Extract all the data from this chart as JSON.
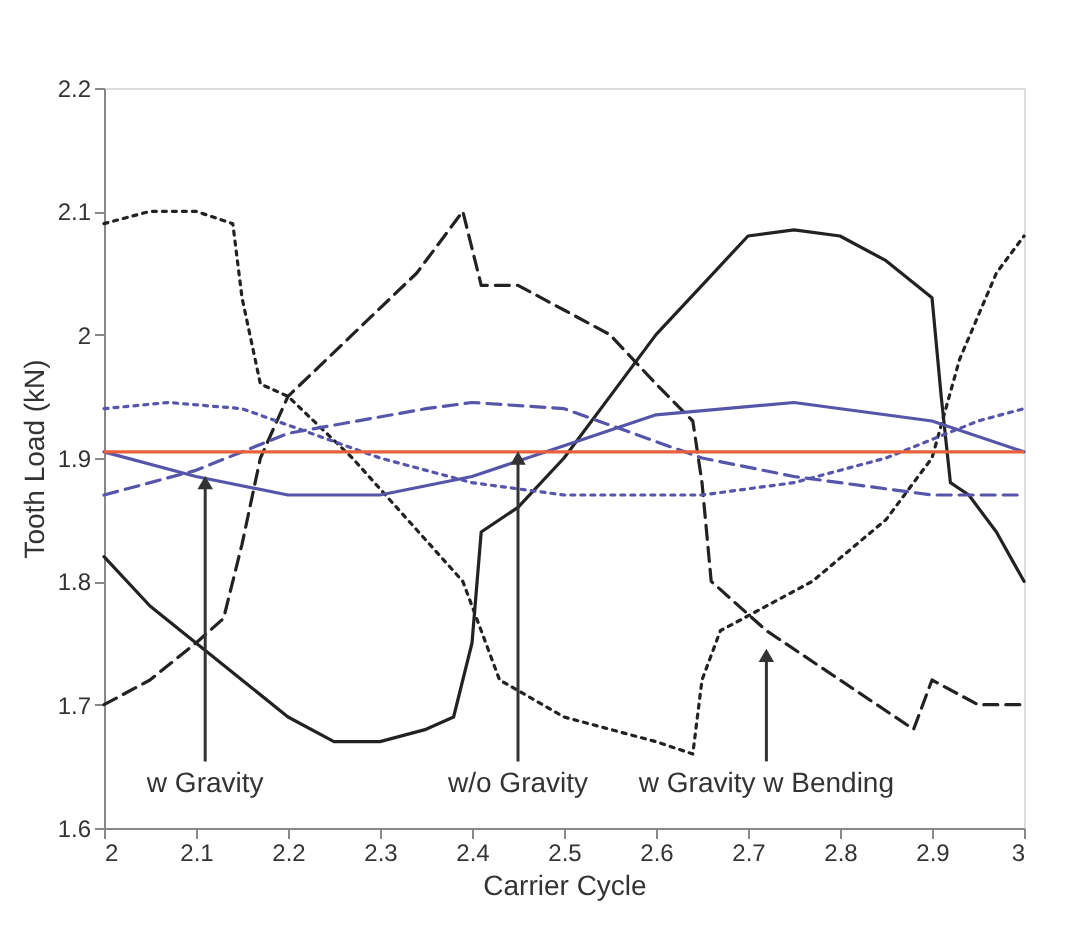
{
  "chart_data": {
    "type": "line",
    "xlabel": "Carrier Cycle",
    "ylabel": "Tooth Load (kN)",
    "xlim": [
      2,
      3
    ],
    "ylim": [
      1.6,
      2.2
    ],
    "xticks": [
      2,
      2.1,
      2.2,
      2.3,
      2.4,
      2.5,
      2.6,
      2.7,
      2.8,
      2.9,
      3
    ],
    "yticks": [
      1.6,
      1.7,
      1.8,
      1.9,
      2,
      2.1,
      2.2
    ],
    "grid": false,
    "marker": "none",
    "series": [
      {
        "color": "#222222",
        "line_style": "solid",
        "x": [
          2.0,
          2.05,
          2.1,
          2.15,
          2.2,
          2.25,
          2.3,
          2.35,
          2.38,
          2.4,
          2.41,
          2.45,
          2.5,
          2.55,
          2.6,
          2.65,
          2.7,
          2.75,
          2.8,
          2.85,
          2.9,
          2.91,
          2.92,
          2.94,
          2.97,
          3.0
        ],
        "values": [
          1.82,
          1.78,
          1.75,
          1.72,
          1.69,
          1.67,
          1.67,
          1.68,
          1.69,
          1.75,
          1.84,
          1.86,
          1.9,
          1.95,
          2.0,
          2.04,
          2.08,
          2.085,
          2.08,
          2.06,
          2.03,
          1.95,
          1.88,
          1.87,
          1.84,
          1.8
        ]
      },
      {
        "color": "#222222",
        "line_style": "dashed",
        "x": [
          2.0,
          2.05,
          2.1,
          2.13,
          2.15,
          2.17,
          2.2,
          2.27,
          2.34,
          2.39,
          2.41,
          2.45,
          2.5,
          2.55,
          2.6,
          2.64,
          2.65,
          2.66,
          2.72,
          2.8,
          2.88,
          2.9,
          2.95,
          3.0
        ],
        "values": [
          1.7,
          1.72,
          1.75,
          1.77,
          1.83,
          1.9,
          1.95,
          2.0,
          2.05,
          2.1,
          2.04,
          2.04,
          2.02,
          2.0,
          1.96,
          1.93,
          1.88,
          1.8,
          1.76,
          1.72,
          1.68,
          1.72,
          1.7,
          1.7
        ]
      },
      {
        "color": "#222222",
        "line_style": "dotted",
        "x": [
          2.0,
          2.05,
          2.1,
          2.14,
          2.15,
          2.17,
          2.2,
          2.27,
          2.33,
          2.39,
          2.43,
          2.5,
          2.6,
          2.64,
          2.65,
          2.67,
          2.77,
          2.85,
          2.9,
          2.93,
          2.97,
          3.0
        ],
        "values": [
          2.09,
          2.1,
          2.1,
          2.09,
          2.03,
          1.96,
          1.95,
          1.9,
          1.85,
          1.8,
          1.72,
          1.69,
          1.67,
          1.66,
          1.72,
          1.76,
          1.8,
          1.85,
          1.9,
          1.98,
          2.05,
          2.08
        ]
      },
      {
        "color": "#5555aa",
        "line_style": "solid",
        "x": [
          2.0,
          2.1,
          2.2,
          2.3,
          2.4,
          2.5,
          2.6,
          2.75,
          2.9,
          3.0
        ],
        "values": [
          1.905,
          1.885,
          1.87,
          1.87,
          1.885,
          1.91,
          1.935,
          1.945,
          1.93,
          1.905
        ]
      },
      {
        "color": "#5555aa",
        "line_style": "dashed",
        "x": [
          2.0,
          2.1,
          2.2,
          2.35,
          2.4,
          2.5,
          2.65,
          2.75,
          2.9,
          3.0
        ],
        "values": [
          1.87,
          1.89,
          1.92,
          1.94,
          1.945,
          1.94,
          1.9,
          1.885,
          1.87,
          1.87
        ]
      },
      {
        "color": "#5555aa",
        "line_style": "dotted",
        "x": [
          2.0,
          2.07,
          2.15,
          2.3,
          2.4,
          2.5,
          2.65,
          2.75,
          2.85,
          2.95,
          3.0
        ],
        "values": [
          1.94,
          1.945,
          1.94,
          1.9,
          1.88,
          1.87,
          1.87,
          1.88,
          1.9,
          1.93,
          1.94
        ]
      }
    ],
    "ref_lines": [
      {
        "axis": "y",
        "value": 1.905,
        "color": "#e8603c"
      }
    ],
    "annotations": [
      {
        "text": "w Gravity",
        "x": 2.11,
        "y": 1.88
      },
      {
        "text": "w/o Gravity",
        "x": 2.45,
        "y": 1.9
      },
      {
        "text": "w Gravity w Bending",
        "x": 2.72,
        "y": 1.74
      }
    ]
  }
}
